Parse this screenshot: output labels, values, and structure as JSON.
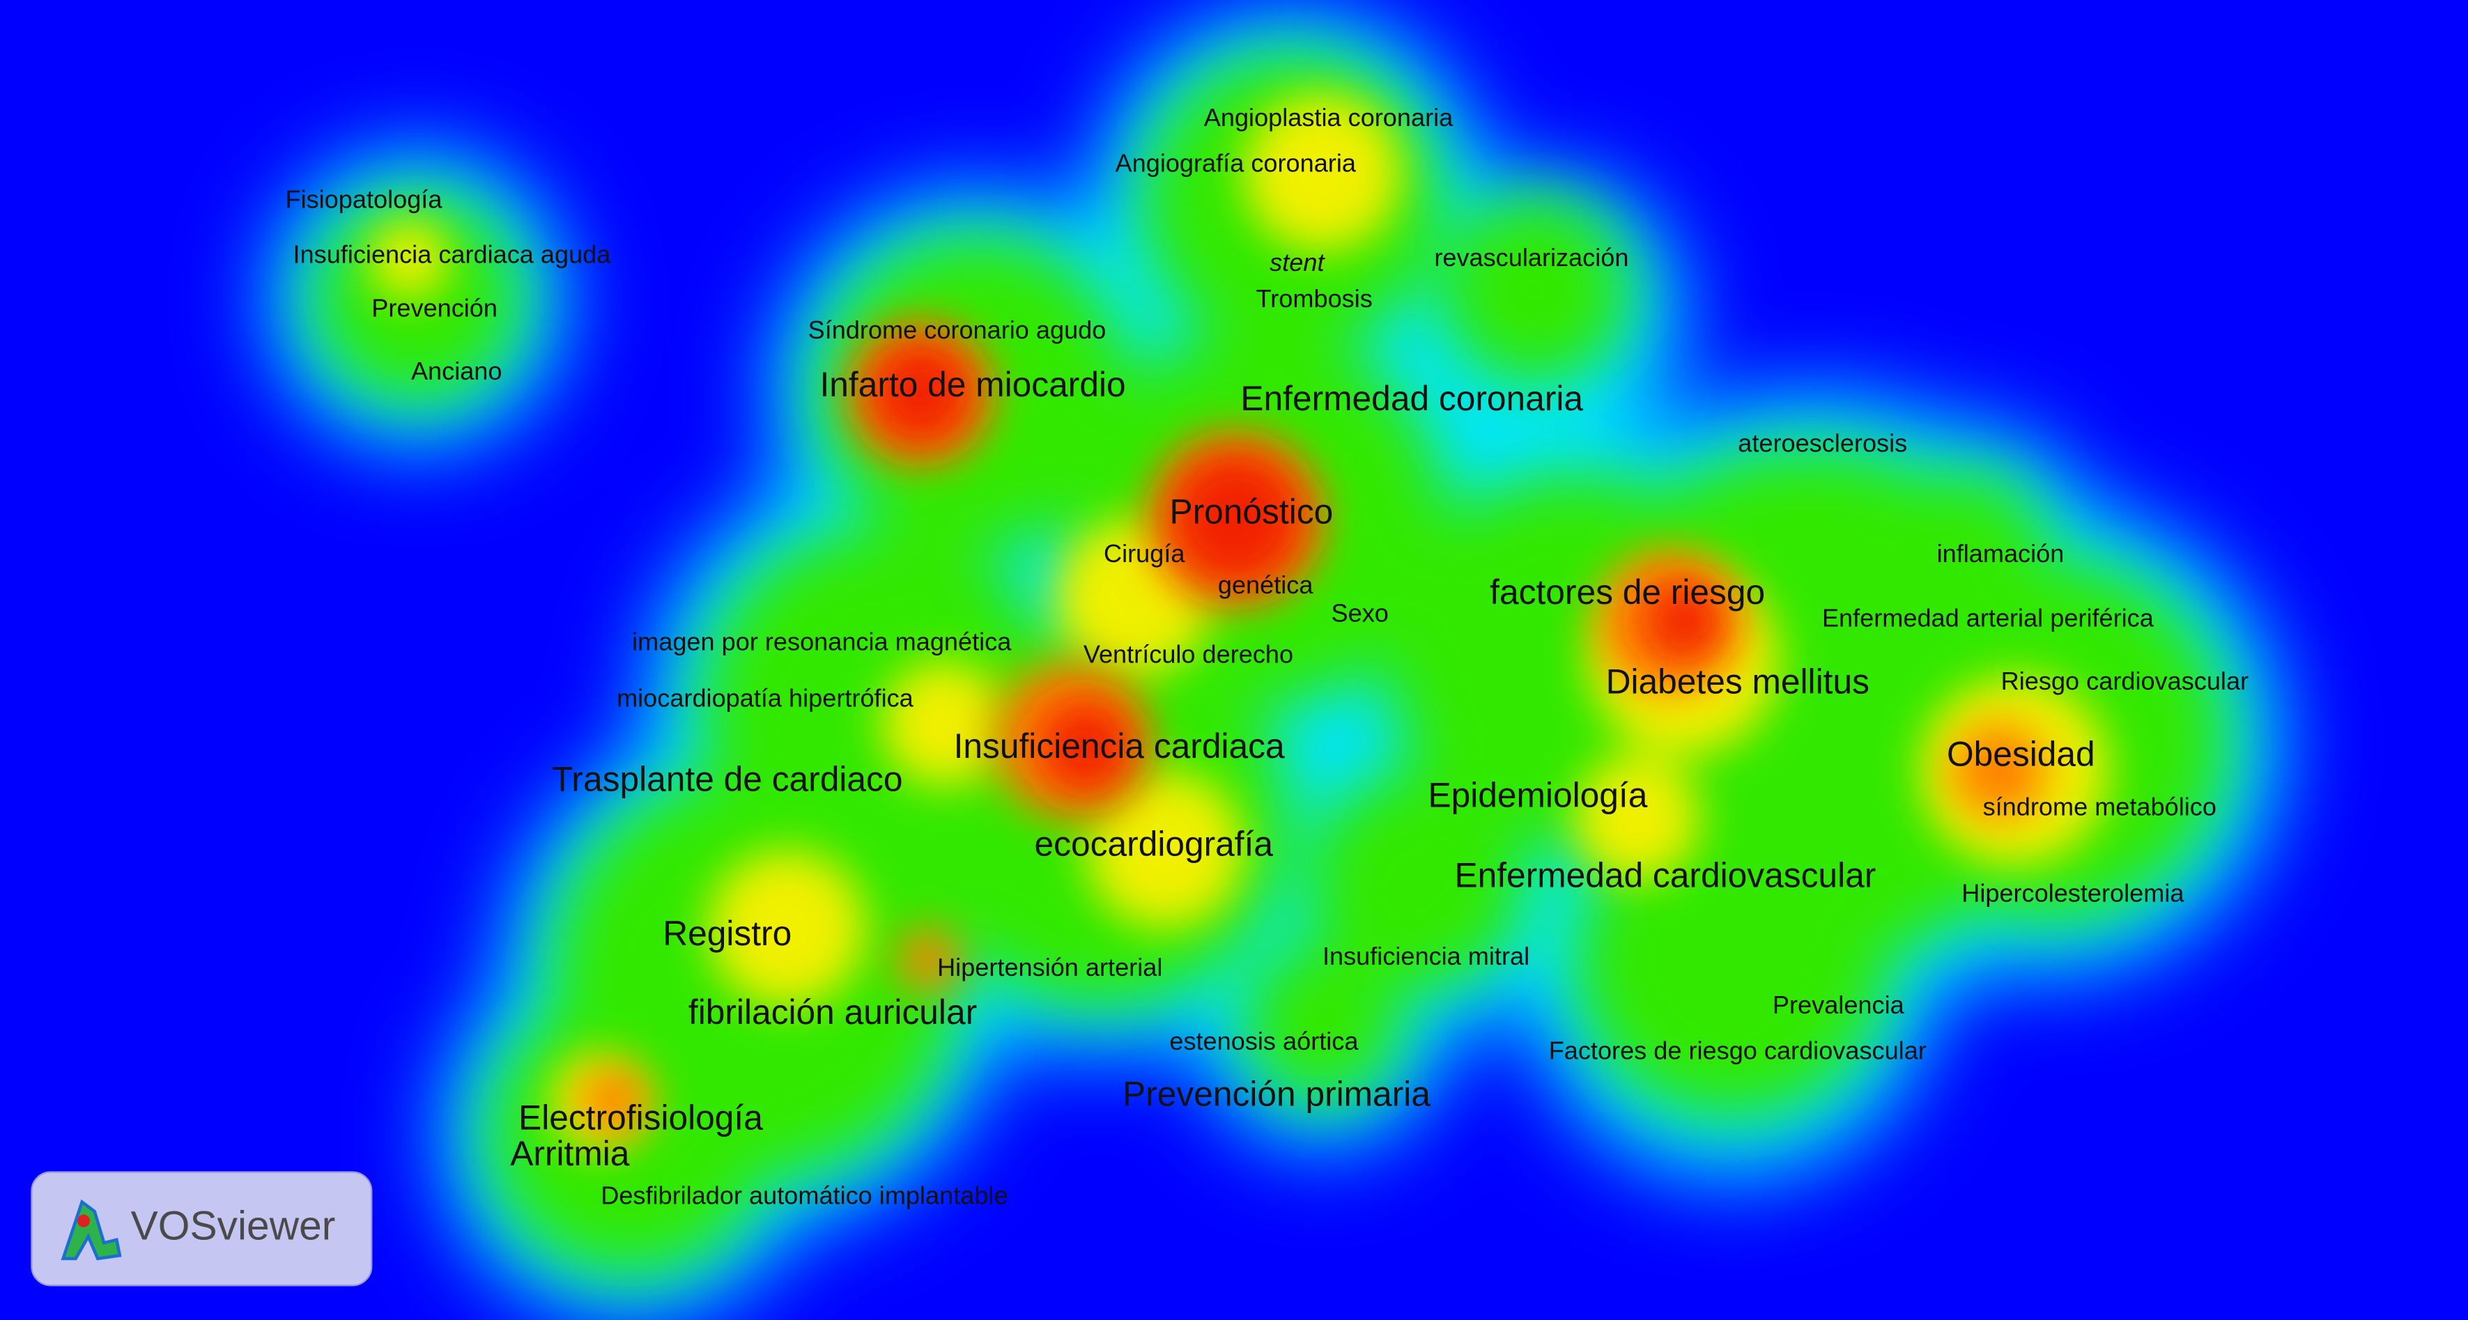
{
  "labels": [
    "Angioplastia coronaria",
    "Angiografía coronaria",
    "Fisiopatología",
    "Insuficiencia cardiaca aguda",
    "Prevención",
    "Anciano",
    "stent",
    "revascularización",
    "Trombosis",
    "Síndrome coronario agudo",
    "Infarto de miocardio",
    "Enfermedad coronaria",
    "ateroesclerosis",
    "Pronóstico",
    "Cirugía",
    "inflamación",
    "genética",
    "factores de riesgo",
    "Sexo",
    "Enfermedad arterial periférica",
    "imagen por resonancia magnética",
    "Ventrículo derecho",
    "Diabetes mellitus",
    "Riesgo cardiovascular",
    "miocardiopatía hipertrófica",
    "Insuficiencia cardiaca",
    "Obesidad",
    "Trasplante de cardiaco",
    "Epidemiología",
    "síndrome metabólico",
    "ecocardiografía",
    "Enfermedad cardiovascular",
    "Hipercolesterolemia",
    "Registro",
    "Insuficiencia mitral",
    "Hipertensión arterial",
    "fibrilación auricular",
    "Prevalencia",
    "estenosis aórtica",
    "Factores de riesgo cardiovascular",
    "Prevención primaria",
    "Electrofisiología",
    "Arritmia",
    "Desfibrilador automático implantable"
  ],
  "logo": {
    "text": "VOSviewer"
  }
}
